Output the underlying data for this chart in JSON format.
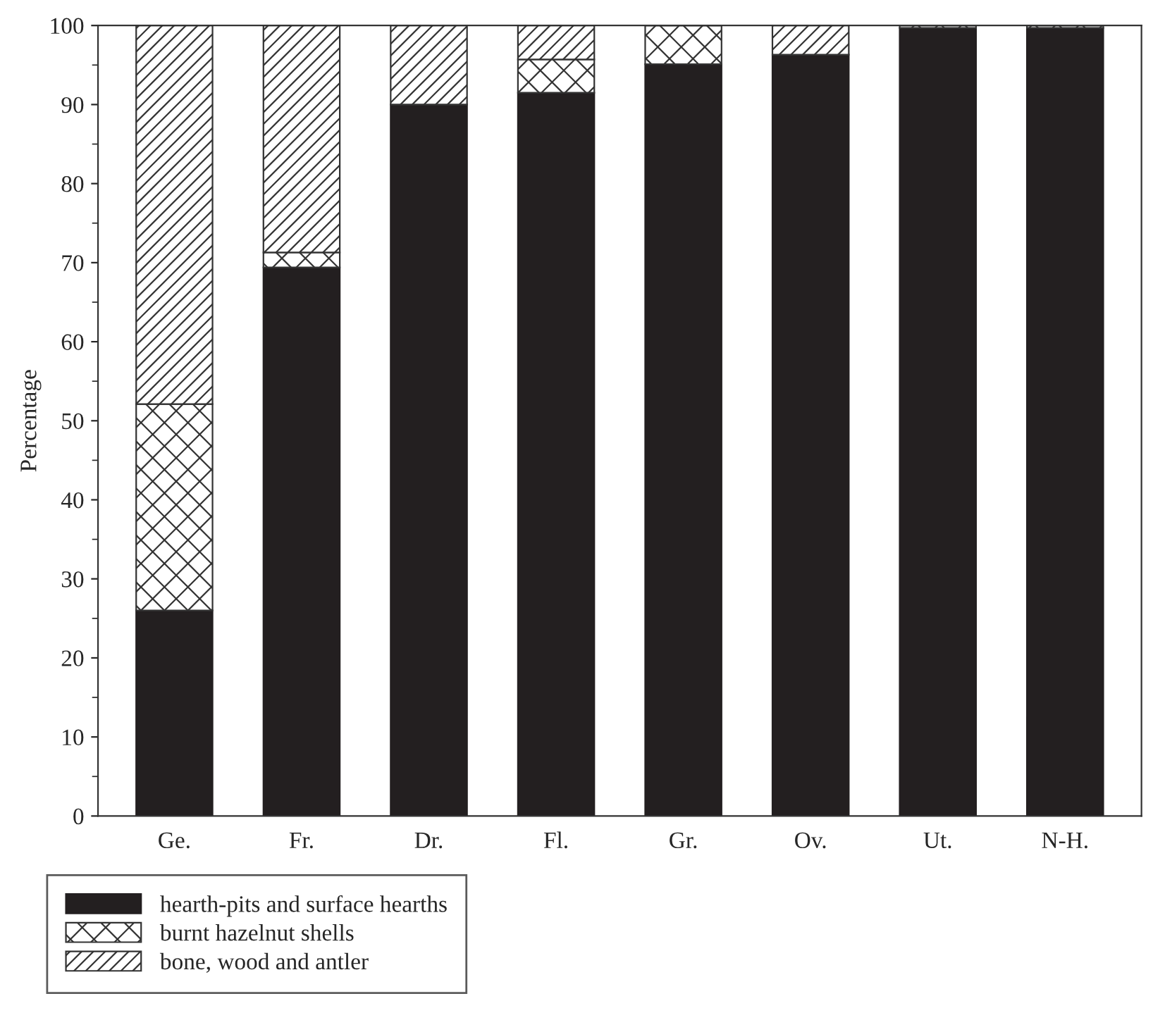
{
  "chart_data": {
    "type": "bar",
    "stacked": true,
    "ylabel": "Percentage",
    "categories": [
      "Ge.",
      "Fr.",
      "Dr.",
      "Fl.",
      "Gr.",
      "Ov.",
      "Ut.",
      "N-H."
    ],
    "series": [
      {
        "name": "hearth-pits and surface hearths",
        "color": "#231f20",
        "values": [
          26.0,
          69.4,
          90.0,
          91.5,
          95.1,
          96.3,
          99.7,
          99.7
        ]
      },
      {
        "name": "burnt hazelnut shells",
        "color": "#333333",
        "values": [
          26.1,
          1.9,
          0,
          4.2,
          4.9,
          0,
          0.3,
          0.3
        ]
      },
      {
        "name": "bone, wood and antler",
        "color": "#333333",
        "values": [
          47.9,
          28.7,
          10.0,
          4.3,
          0,
          3.7,
          0,
          0
        ]
      }
    ],
    "ylim": [
      0,
      100
    ],
    "yticks": [
      0,
      {
        "value": 5,
        "label": null
      },
      10,
      {
        "value": 15,
        "label": null
      },
      20,
      {
        "value": 25,
        "label": null
      },
      30,
      {
        "value": 35,
        "label": null
      },
      40,
      {
        "value": 45,
        "label": null
      },
      50,
      {
        "value": 55,
        "label": null
      },
      60,
      {
        "value": 65,
        "label": null
      },
      70,
      {
        "value": 75,
        "label": null
      },
      80,
      {
        "value": 85,
        "label": null
      },
      90,
      {
        "value": 95,
        "label": null
      },
      100
    ],
    "grid": false,
    "legend": "bottom left"
  }
}
